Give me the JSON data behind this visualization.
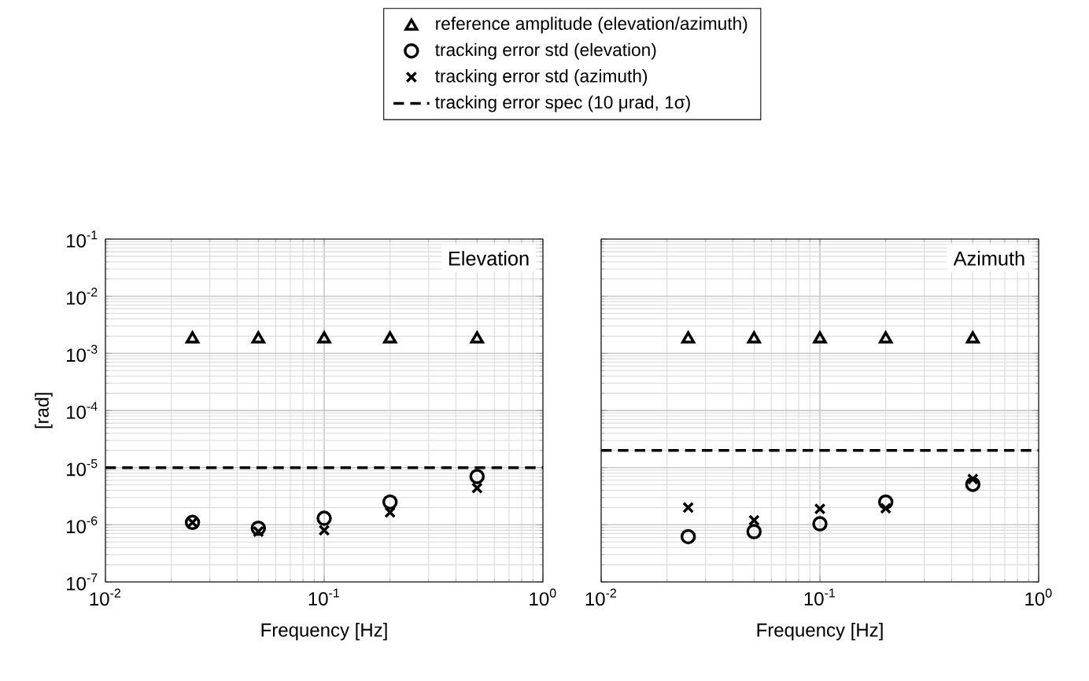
{
  "chart_data": [
    {
      "type": "scatter",
      "title": "Elevation",
      "xlabel": "Frequency [Hz]",
      "ylabel": "[rad]",
      "log": "xy",
      "grid": true,
      "legend": "top",
      "x": [
        0.025,
        0.05,
        0.1,
        0.2,
        0.5
      ],
      "xlim": [
        0.01,
        1
      ],
      "ylim": [
        1e-07,
        0.1
      ],
      "xticks": [
        {
          "value": 0.01,
          "label": "10$^{-2}$"
        },
        {
          "value": 0.1,
          "label": "10$^{-1}$"
        },
        {
          "value": 1,
          "label": "10$^{0}$"
        }
      ],
      "yticks": [
        {
          "value": 1e-07,
          "label": "10$^{-7}$"
        },
        {
          "value": 1e-06,
          "label": "10$^{-6}$"
        },
        {
          "value": 1e-05,
          "label": "10$^{-5}$"
        },
        {
          "value": 0.0001,
          "label": "10$^{-4}$"
        },
        {
          "value": 0.001,
          "label": "10$^{-3}$"
        },
        {
          "value": 0.01,
          "label": "10$^{-2}$"
        },
        {
          "value": 0.1,
          "label": "10$^{-1}$"
        }
      ],
      "series": [
        {
          "name": "reference amplitude (elevation/azimuth)",
          "color": "#000000",
          "marker": "triangle",
          "values": [
            0.0019,
            0.0019,
            0.0019,
            0.0019,
            0.0019
          ]
        },
        {
          "name": "tracking error std (elevation)",
          "color": "#000000",
          "marker": "circle",
          "values": [
            1.1e-06,
            8.7e-07,
            1.3e-06,
            2.5e-06,
            7e-06
          ]
        },
        {
          "name": "tracking error std (azimuth)",
          "color": "#000000",
          "marker": "cross",
          "values": [
            1.1e-06,
            7.6e-07,
            8e-07,
            1.65e-06,
            4.4e-06
          ]
        }
      ],
      "ref_lines": [
        {
          "axis": "y",
          "value": 1e-05,
          "label": "tracking error spec (10 μrad, 1σ)",
          "color": "#000000",
          "line_style": "dashed"
        }
      ]
    },
    {
      "type": "scatter",
      "title": "Azimuth",
      "xlabel": "Frequency [Hz]",
      "log": "xy",
      "grid": true,
      "tick_labels": "x",
      "x": [
        0.025,
        0.05,
        0.1,
        0.2,
        0.5
      ],
      "xlim": [
        0.01,
        1
      ],
      "ylim": [
        1e-07,
        0.1
      ],
      "xticks": [
        {
          "value": 0.01,
          "label": "10$^{-2}$"
        },
        {
          "value": 0.1,
          "label": "10$^{-1}$"
        },
        {
          "value": 1,
          "label": "10$^{0}$"
        }
      ],
      "yticks": [
        {
          "value": 1e-07,
          "label": null
        },
        {
          "value": 1e-06,
          "label": null
        },
        {
          "value": 1e-05,
          "label": null
        },
        {
          "value": 0.0001,
          "label": null
        },
        {
          "value": 0.001,
          "label": null
        },
        {
          "value": 0.01,
          "label": null
        },
        {
          "value": 0.1,
          "label": null
        }
      ],
      "series": [
        {
          "color": "#000000",
          "marker": "triangle",
          "values": [
            0.0019,
            0.0019,
            0.0019,
            0.0019,
            0.0019
          ]
        },
        {
          "color": "#000000",
          "marker": "circle",
          "values": [
            6.2e-07,
            7.6e-07,
            1.04e-06,
            2.5e-06,
            5.1e-06
          ]
        },
        {
          "color": "#000000",
          "marker": "cross",
          "values": [
            2e-06,
            1.2e-06,
            1.9e-06,
            1.95e-06,
            6.3e-06
          ]
        }
      ],
      "ref_lines": [
        {
          "axis": "y",
          "value": 2e-05,
          "color": "#000000",
          "line_style": "dashed"
        }
      ]
    }
  ]
}
